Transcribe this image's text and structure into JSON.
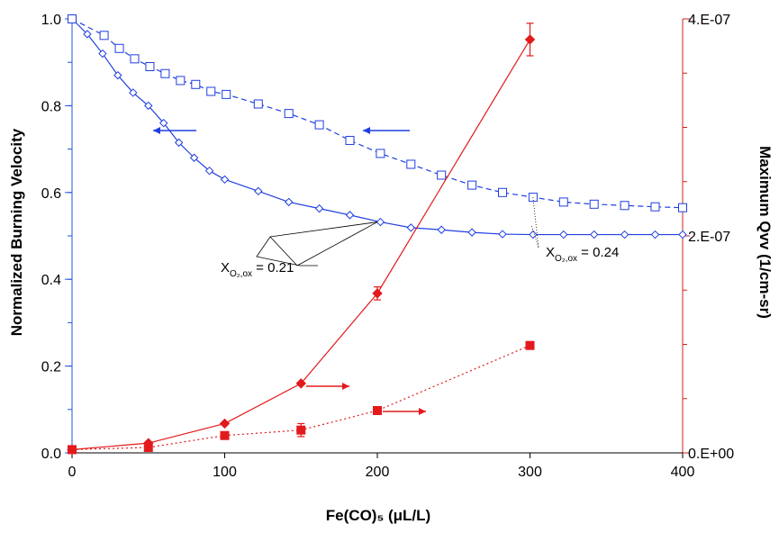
{
  "chart_data": {
    "type": "line",
    "title": "",
    "xlabel": "Fe(CO)₅ (μL/L)",
    "ylabel_left": "Normalized Burning Velocity",
    "ylabel_right": "Maximum  Qvv (1/cm-sr)",
    "xlim": [
      0,
      400
    ],
    "ylim_left": [
      0,
      1.0
    ],
    "ylim_right": [
      0,
      4e-07
    ],
    "x_ticks": [
      "0",
      "100",
      "200",
      "300",
      "400"
    ],
    "y_left_ticks": [
      "0.0",
      "0.2",
      "0.4",
      "0.6",
      "0.8",
      "1.0"
    ],
    "y_right_ticks": [
      "0.E+00",
      "2.E-07",
      "4.E-07"
    ],
    "grid": false,
    "colors": {
      "blue": "#1f3fe0",
      "red": "#e31a1c",
      "axis_left": "#2255dd",
      "axis_right": "#cc2222"
    },
    "series": [
      {
        "axis": "left",
        "marker": "diamond",
        "line": "solid",
        "color": "#1f3fe0",
        "x": [
          0,
          10,
          20,
          30,
          40,
          50,
          60,
          70,
          80,
          90,
          100,
          122,
          142,
          162,
          182,
          202,
          222,
          242,
          262,
          282,
          302,
          322,
          342,
          362,
          382,
          400
        ],
        "y": [
          1.0,
          0.965,
          0.92,
          0.87,
          0.83,
          0.8,
          0.76,
          0.715,
          0.68,
          0.65,
          0.63,
          0.603,
          0.578,
          0.563,
          0.548,
          0.532,
          0.519,
          0.514,
          0.508,
          0.504,
          0.503,
          0.503,
          0.503,
          0.503,
          0.503,
          0.503
        ]
      },
      {
        "axis": "left",
        "marker": "square-open",
        "line": "dashed",
        "color": "#1f3fe0",
        "x": [
          0,
          21,
          31,
          41,
          51,
          61,
          71,
          81,
          91,
          101,
          122,
          142,
          162,
          182,
          202,
          222,
          242,
          262,
          282,
          302,
          322,
          342,
          362,
          382,
          400
        ],
        "y": [
          1.0,
          0.962,
          0.932,
          0.908,
          0.89,
          0.874,
          0.858,
          0.849,
          0.833,
          0.826,
          0.804,
          0.782,
          0.756,
          0.72,
          0.69,
          0.665,
          0.64,
          0.617,
          0.6,
          0.589,
          0.578,
          0.573,
          0.57,
          0.567,
          0.565
        ]
      },
      {
        "axis": "right",
        "marker": "diamond-filled",
        "line": "solid",
        "color": "#e31a1c",
        "x": [
          0,
          50,
          100,
          150,
          200,
          300
        ],
        "y": [
          3e-09,
          9e-09,
          2.7e-08,
          6.4e-08,
          1.47e-07,
          3.81e-07
        ],
        "err": [
          0,
          0,
          0,
          0,
          6e-09,
          1.5e-08
        ]
      },
      {
        "axis": "right",
        "marker": "square-filled",
        "line": "dotted",
        "color": "#e31a1c",
        "x": [
          0,
          50,
          100,
          150,
          200,
          300
        ],
        "y": [
          3e-09,
          5e-09,
          1.6e-08,
          2.1e-08,
          3.9e-08,
          9.9e-08
        ],
        "err": [
          0,
          0,
          0,
          6e-09,
          0,
          0
        ]
      }
    ],
    "annotations": [
      {
        "text_main": "X",
        "text_sub": "O₂,ox",
        "text_tail": " = 0.21"
      },
      {
        "text_main": "X",
        "text_sub": "O₂,ox",
        "text_tail": " = 0.24"
      }
    ]
  }
}
